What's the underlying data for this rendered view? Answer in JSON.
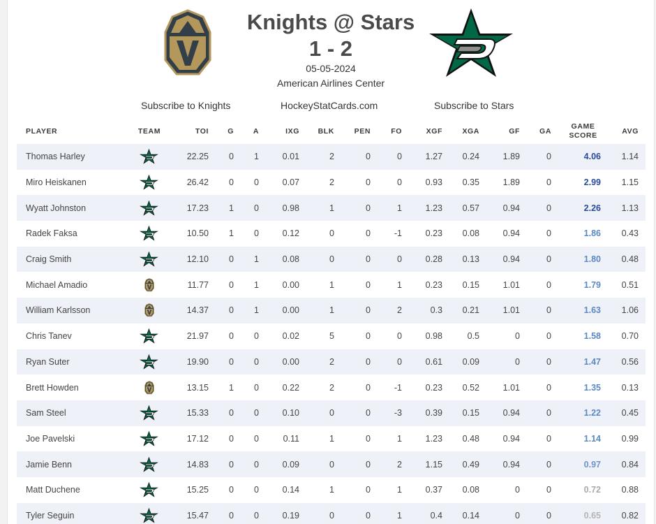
{
  "header": {
    "matchup": "Knights @ Stars",
    "score": "1 - 2",
    "date": "05-05-2024",
    "venue": "American Airlines Center",
    "link_knights": "Subscribe to Knights",
    "link_site": "HockeyStatCards.com",
    "link_stars": "Subscribe to Stars"
  },
  "colors": {
    "stars_green": "#006847",
    "stars_silver": "#8f8f8c",
    "knights_gold": "#b4975a",
    "knights_dark": "#333f48",
    "score_dark": "#2b4c9b",
    "score_mid": "#5c88c4",
    "score_light": "#aaaaaa"
  },
  "columns": {
    "player": "PLAYER",
    "team": "TEAM",
    "toi": "TOI",
    "g": "G",
    "a": "A",
    "ixg": "IXG",
    "blk": "BLK",
    "pen": "PEN",
    "fo": "FO",
    "xgf": "XGF",
    "xga": "XGA",
    "gf": "GF",
    "ga": "GA",
    "game_score_1": "GAME",
    "game_score_2": "SCORE",
    "avg": "AVG"
  },
  "rows": [
    {
      "player": "Thomas Harley",
      "team": "stars-logo-icon",
      "toi": "22.25",
      "g": "0",
      "a": "1",
      "ixg": "0.01",
      "blk": "2",
      "pen": "0",
      "fo": "0",
      "xgf": "1.27",
      "xga": "0.24",
      "gf": "1.89",
      "ga": "0",
      "gs": "4.06",
      "avg": "1.14",
      "gs_color": "#2b4c9b"
    },
    {
      "player": "Miro Heiskanen",
      "team": "stars-logo-icon",
      "toi": "26.42",
      "g": "0",
      "a": "0",
      "ixg": "0.07",
      "blk": "2",
      "pen": "0",
      "fo": "0",
      "xgf": "0.93",
      "xga": "0.35",
      "gf": "1.89",
      "ga": "0",
      "gs": "2.99",
      "avg": "1.15",
      "gs_color": "#2b4c9b"
    },
    {
      "player": "Wyatt Johnston",
      "team": "stars-logo-icon",
      "toi": "17.23",
      "g": "1",
      "a": "0",
      "ixg": "0.98",
      "blk": "1",
      "pen": "0",
      "fo": "1",
      "xgf": "1.23",
      "xga": "0.57",
      "gf": "0.94",
      "ga": "0",
      "gs": "2.26",
      "avg": "1.13",
      "gs_color": "#2b4c9b"
    },
    {
      "player": "Radek Faksa",
      "team": "stars-logo-icon",
      "toi": "10.50",
      "g": "1",
      "a": "0",
      "ixg": "0.12",
      "blk": "0",
      "pen": "0",
      "fo": "-1",
      "xgf": "0.23",
      "xga": "0.08",
      "gf": "0.94",
      "ga": "0",
      "gs": "1.86",
      "avg": "0.43",
      "gs_color": "#5c88c4"
    },
    {
      "player": "Craig Smith",
      "team": "stars-logo-icon",
      "toi": "12.10",
      "g": "0",
      "a": "1",
      "ixg": "0.08",
      "blk": "0",
      "pen": "0",
      "fo": "0",
      "xgf": "0.28",
      "xga": "0.13",
      "gf": "0.94",
      "ga": "0",
      "gs": "1.80",
      "avg": "0.48",
      "gs_color": "#5c88c4"
    },
    {
      "player": "Michael Amadio",
      "team": "knights-logo-icon",
      "toi": "11.77",
      "g": "0",
      "a": "1",
      "ixg": "0.00",
      "blk": "1",
      "pen": "0",
      "fo": "1",
      "xgf": "0.23",
      "xga": "0.15",
      "gf": "1.01",
      "ga": "0",
      "gs": "1.79",
      "avg": "0.51",
      "gs_color": "#5c88c4"
    },
    {
      "player": "William Karlsson",
      "team": "knights-logo-icon",
      "toi": "14.37",
      "g": "0",
      "a": "1",
      "ixg": "0.00",
      "blk": "1",
      "pen": "0",
      "fo": "2",
      "xgf": "0.3",
      "xga": "0.21",
      "gf": "1.01",
      "ga": "0",
      "gs": "1.63",
      "avg": "1.06",
      "gs_color": "#5c88c4"
    },
    {
      "player": "Chris Tanev",
      "team": "stars-logo-icon",
      "toi": "21.97",
      "g": "0",
      "a": "0",
      "ixg": "0.02",
      "blk": "5",
      "pen": "0",
      "fo": "0",
      "xgf": "0.98",
      "xga": "0.5",
      "gf": "0",
      "ga": "0",
      "gs": "1.58",
      "avg": "0.70",
      "gs_color": "#5c88c4"
    },
    {
      "player": "Ryan Suter",
      "team": "stars-logo-icon",
      "toi": "19.90",
      "g": "0",
      "a": "0",
      "ixg": "0.00",
      "blk": "2",
      "pen": "0",
      "fo": "0",
      "xgf": "0.61",
      "xga": "0.09",
      "gf": "0",
      "ga": "0",
      "gs": "1.47",
      "avg": "0.56",
      "gs_color": "#5c88c4"
    },
    {
      "player": "Brett Howden",
      "team": "knights-logo-icon",
      "toi": "13.15",
      "g": "1",
      "a": "0",
      "ixg": "0.22",
      "blk": "2",
      "pen": "0",
      "fo": "-1",
      "xgf": "0.23",
      "xga": "0.52",
      "gf": "1.01",
      "ga": "0",
      "gs": "1.35",
      "avg": "0.13",
      "gs_color": "#5c88c4"
    },
    {
      "player": "Sam Steel",
      "team": "stars-logo-icon",
      "toi": "15.33",
      "g": "0",
      "a": "0",
      "ixg": "0.10",
      "blk": "0",
      "pen": "0",
      "fo": "-3",
      "xgf": "0.39",
      "xga": "0.15",
      "gf": "0.94",
      "ga": "0",
      "gs": "1.22",
      "avg": "0.45",
      "gs_color": "#5c88c4"
    },
    {
      "player": "Joe Pavelski",
      "team": "stars-logo-icon",
      "toi": "17.12",
      "g": "0",
      "a": "0",
      "ixg": "0.11",
      "blk": "1",
      "pen": "0",
      "fo": "1",
      "xgf": "1.23",
      "xga": "0.48",
      "gf": "0.94",
      "ga": "0",
      "gs": "1.14",
      "avg": "0.99",
      "gs_color": "#5c88c4"
    },
    {
      "player": "Jamie Benn",
      "team": "stars-logo-icon",
      "toi": "14.83",
      "g": "0",
      "a": "0",
      "ixg": "0.09",
      "blk": "0",
      "pen": "0",
      "fo": "2",
      "xgf": "1.15",
      "xga": "0.49",
      "gf": "0.94",
      "ga": "0",
      "gs": "0.97",
      "avg": "0.84",
      "gs_color": "#6f95c9"
    },
    {
      "player": "Matt Duchene",
      "team": "stars-logo-icon",
      "toi": "15.25",
      "g": "0",
      "a": "0",
      "ixg": "0.14",
      "blk": "1",
      "pen": "0",
      "fo": "1",
      "xgf": "0.37",
      "xga": "0.08",
      "gf": "0",
      "ga": "0",
      "gs": "0.72",
      "avg": "0.88",
      "gs_color": "#aaaaaa"
    },
    {
      "player": "Tyler Seguin",
      "team": "stars-logo-icon",
      "toi": "15.47",
      "g": "0",
      "a": "0",
      "ixg": "0.19",
      "blk": "0",
      "pen": "0",
      "fo": "1",
      "xgf": "0.4",
      "xga": "0.14",
      "gf": "0",
      "ga": "0",
      "gs": "0.65",
      "avg": "0.82",
      "gs_color": "#b5b5b5"
    }
  ]
}
